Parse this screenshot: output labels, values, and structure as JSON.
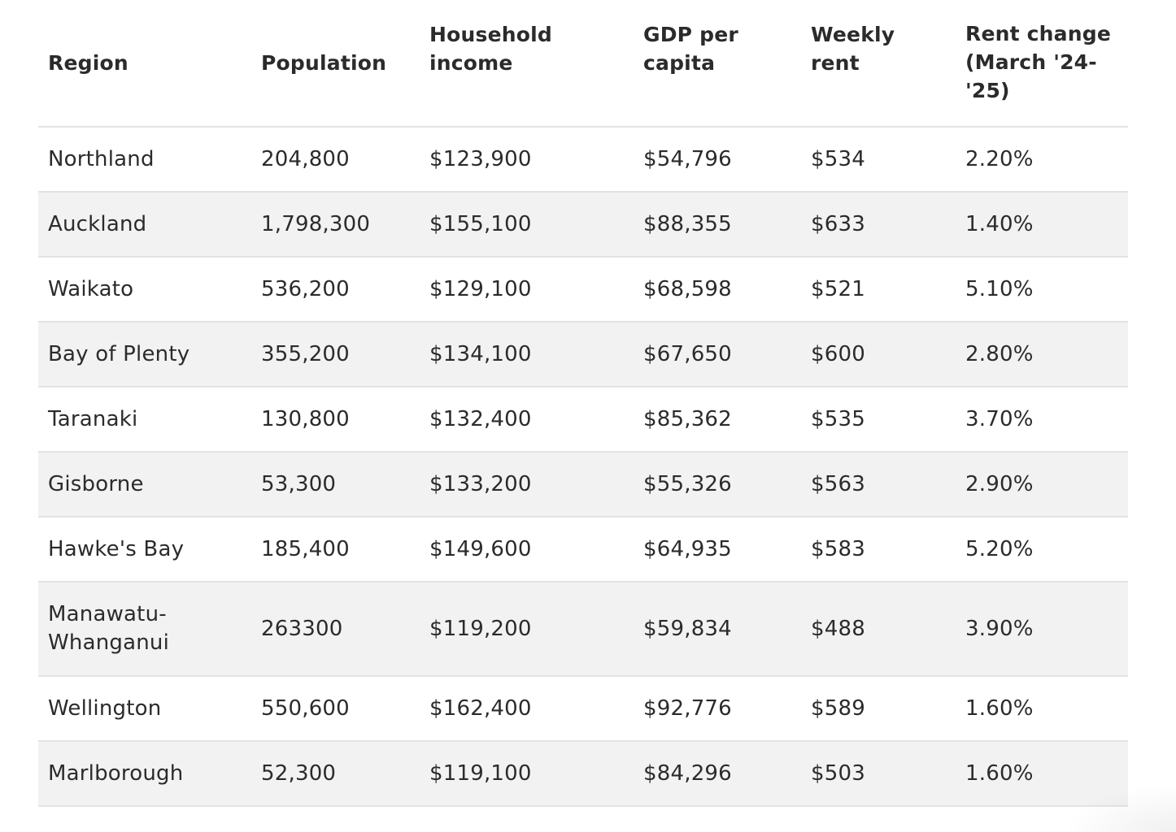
{
  "table": {
    "headers": [
      "Region",
      "Population",
      "Household income",
      "GDP per capita",
      "Weekly rent",
      "Rent change (March '24-'25)"
    ],
    "rows": [
      [
        "Northland",
        "204,800",
        "$123,900",
        "$54,796",
        "$534",
        "2.20%"
      ],
      [
        "Auckland",
        "1,798,300",
        "$155,100",
        "$88,355",
        "$633",
        "1.40%"
      ],
      [
        "Waikato",
        "536,200",
        "$129,100",
        "$68,598",
        "$521",
        "5.10%"
      ],
      [
        "Bay of Plenty",
        "355,200",
        "$134,100",
        "$67,650",
        "$600",
        "2.80%"
      ],
      [
        "Taranaki",
        "130,800",
        "$132,400",
        "$85,362",
        "$535",
        "3.70%"
      ],
      [
        "Gisborne",
        "53,300",
        "$133,200",
        "$55,326",
        "$563",
        "2.90%"
      ],
      [
        "Hawke's Bay",
        "185,400",
        "$149,600",
        "$64,935",
        "$583",
        "5.20%"
      ],
      [
        "Manawatu-Whanganui",
        "263300",
        "$119,200",
        "$59,834",
        "$488",
        "3.90%"
      ],
      [
        "Wellington",
        "550,600",
        "$162,400",
        "$92,776",
        "$589",
        "1.60%"
      ],
      [
        "Marlborough",
        "52,300",
        "$119,100",
        "$84,296",
        "$503",
        "1.60%"
      ]
    ]
  }
}
